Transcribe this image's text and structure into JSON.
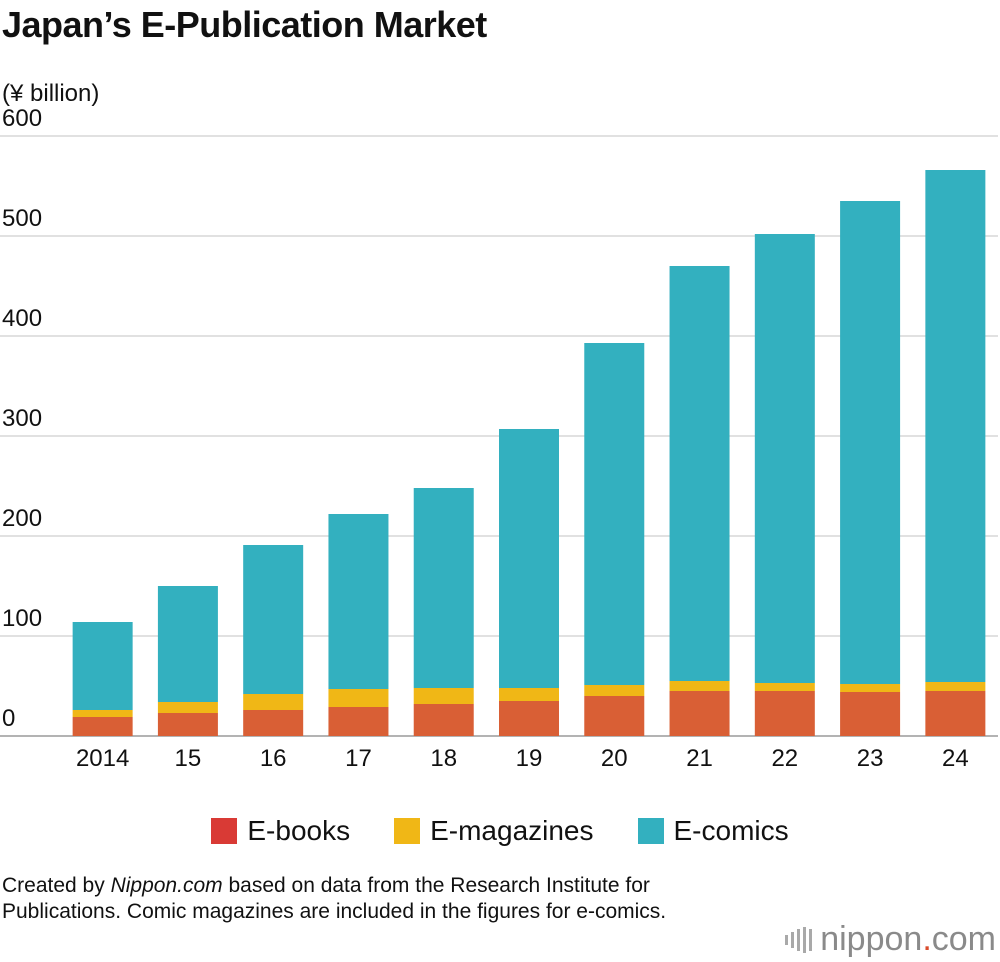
{
  "title": "Japan’s E-Publication Market",
  "unit_label": "(¥ billion)",
  "note": {
    "prefix": "Created by ",
    "source_italic": "Nippon.com",
    "rest": " based on data from the Research Institute for Publications. Comic magazines are included in the figures for e-comics."
  },
  "brand": {
    "name": "nippon",
    "dot": ".",
    "suffix": "com",
    "dot_color": "#d94c2c",
    "icon": "sound-bars-icon"
  },
  "chart_data": {
    "type": "bar",
    "stacked": true,
    "categories": [
      "2014",
      "15",
      "16",
      "17",
      "18",
      "19",
      "20",
      "21",
      "22",
      "23",
      "24"
    ],
    "series": [
      {
        "name": "E-books",
        "color": "#d95f35",
        "legend_color": "#d93a35",
        "values": [
          19,
          23,
          26,
          29,
          32,
          35,
          40,
          45,
          45,
          44,
          45
        ]
      },
      {
        "name": "E-magazines",
        "color": "#f0b716",
        "legend_color": "#f0b716",
        "values": [
          7,
          11,
          16,
          18,
          16,
          13,
          11,
          10,
          8,
          8,
          9
        ]
      },
      {
        "name": "E-comics",
        "color": "#33b0bf",
        "legend_color": "#33b0bf",
        "values": [
          88,
          116,
          149,
          175,
          200,
          259,
          342,
          415,
          449,
          483,
          512
        ]
      }
    ],
    "yticks": [
      "0",
      "100",
      "200",
      "300",
      "400",
      "500",
      "600"
    ],
    "ylim": [
      0,
      600
    ],
    "grid": true,
    "legend_position": "bottom"
  }
}
